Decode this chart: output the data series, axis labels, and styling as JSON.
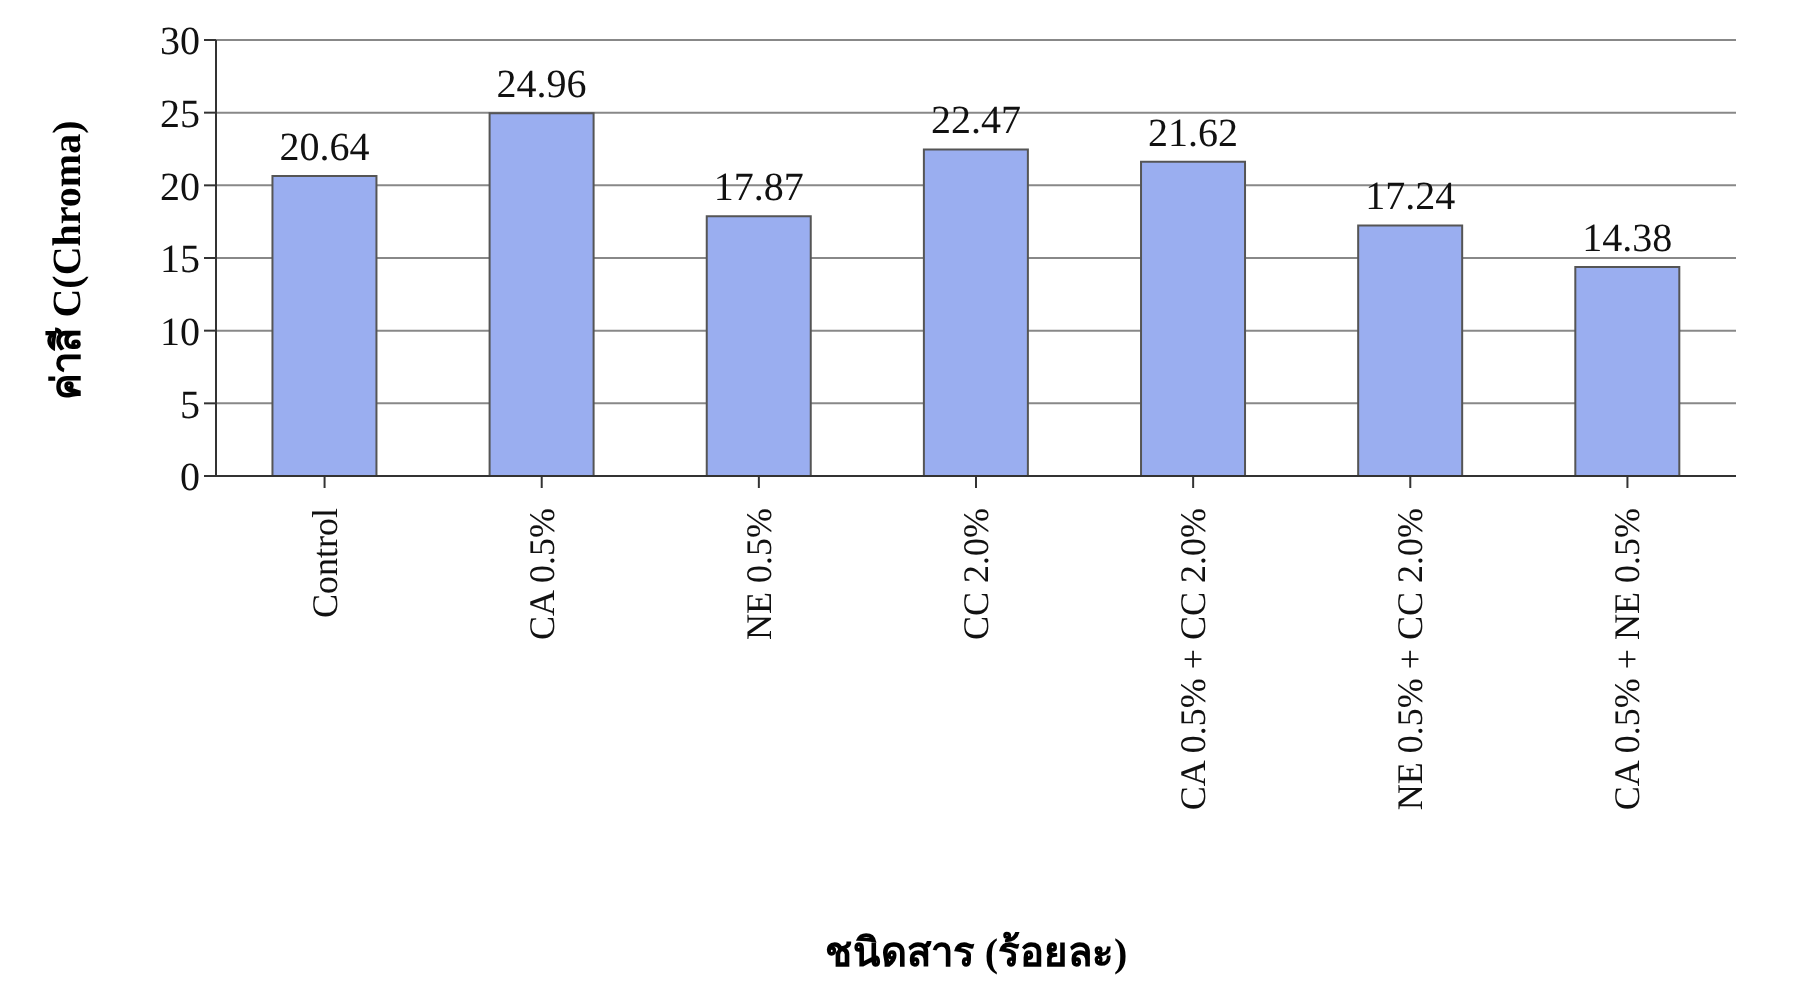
{
  "chart_data": {
    "type": "bar",
    "xlabel": "ชนิดสาร (ร้อยละ)",
    "ylabel": "ค่าสี C(Chroma)",
    "categories": [
      "Control",
      "CA 0.5%",
      "NE 0.5%",
      "CC 2.0%",
      "CA 0.5% + CC 2.0%",
      "NE 0.5% + CC 2.0%",
      "CA 0.5% + NE 0.5%"
    ],
    "values": [
      20.64,
      24.96,
      17.87,
      22.47,
      21.62,
      17.24,
      14.38
    ],
    "color": "#9aaef0",
    "ylim": [
      0,
      30
    ],
    "yticks": [
      0,
      5,
      10,
      15,
      20,
      25,
      30
    ],
    "grid": "y",
    "data_labels": true
  }
}
